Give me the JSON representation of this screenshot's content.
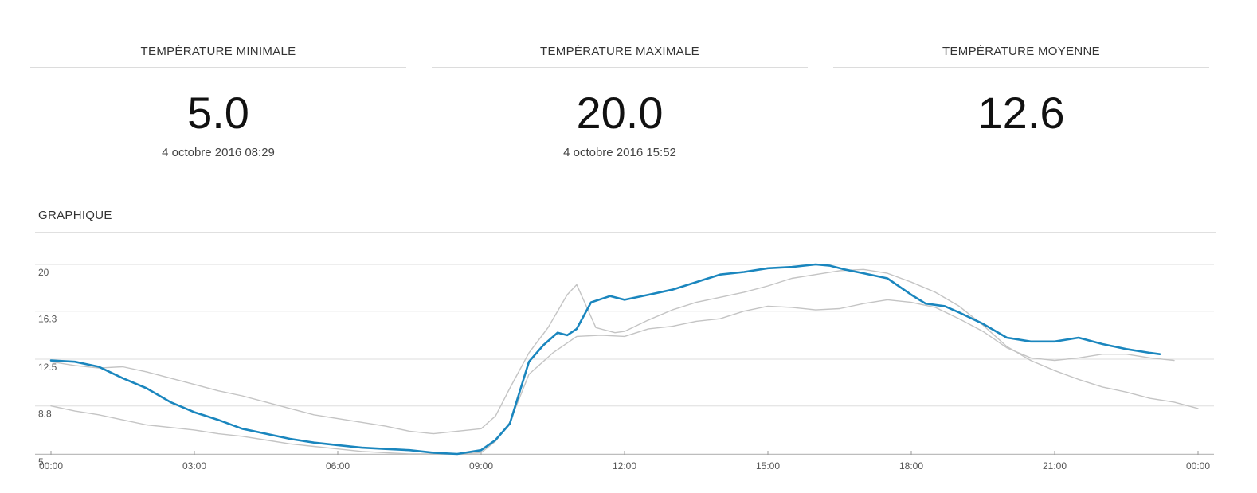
{
  "stats": {
    "min": {
      "title": "TEMPÉRATURE MINIMALE",
      "value": "5.0",
      "date": "4 octobre 2016 08:29"
    },
    "max": {
      "title": "TEMPÉRATURE MAXIMALE",
      "value": "20.0",
      "date": "4 octobre 2016 15:52"
    },
    "avg": {
      "title": "TEMPÉRATURE MOYENNE",
      "value": "12.6"
    }
  },
  "graph": {
    "title": "GRAPHIQUE"
  },
  "chart_data": {
    "type": "line",
    "ylim": [
      5,
      20
    ],
    "yticks": [
      "5",
      "8.8",
      "12.5",
      "16.3",
      "20"
    ],
    "yticks_values": [
      5,
      8.8,
      12.5,
      16.3,
      20
    ],
    "xlim": [
      0,
      24
    ],
    "xticks": [
      "00:00",
      "03:00",
      "06:00",
      "09:00",
      "12:00",
      "15:00",
      "18:00",
      "21:00",
      "00:00"
    ],
    "xticks_values": [
      0,
      3,
      6,
      9,
      12,
      15,
      18,
      21,
      24
    ],
    "grid": true,
    "colors": {
      "main": "#1a86be",
      "ref": "#c4c4c4",
      "grid": "#dedede"
    },
    "series": [
      {
        "x": [
          0,
          0.5,
          1,
          1.5,
          2,
          2.5,
          3,
          3.5,
          4,
          4.5,
          5,
          5.5,
          6,
          6.5,
          7,
          7.5,
          8,
          8.5,
          9,
          9.3,
          9.6,
          10,
          10.3,
          10.6,
          10.8,
          11,
          11.3,
          11.7,
          12,
          12.5,
          13,
          13.5,
          14,
          14.5,
          15,
          15.5,
          16,
          16.3,
          16.6,
          17,
          17.5,
          18,
          18.3,
          18.7,
          19,
          19.5,
          20,
          20.5,
          21,
          21.5,
          22,
          22.5,
          23,
          23.2
        ],
        "y": [
          12.4,
          12.3,
          11.9,
          11.0,
          10.2,
          9.1,
          8.3,
          7.7,
          7.0,
          6.6,
          6.2,
          5.9,
          5.7,
          5.5,
          5.4,
          5.3,
          5.1,
          5.0,
          5.3,
          6.1,
          7.4,
          12.3,
          13.6,
          14.6,
          14.4,
          14.9,
          17.0,
          17.5,
          17.2,
          17.6,
          18.0,
          18.6,
          19.2,
          19.4,
          19.7,
          19.8,
          20.0,
          19.9,
          19.6,
          19.3,
          18.9,
          17.6,
          16.9,
          16.7,
          16.2,
          15.3,
          14.2,
          13.9,
          13.9,
          14.2,
          13.7,
          13.3,
          13.0,
          12.9
        ]
      },
      {
        "x": [
          0,
          0.5,
          1,
          1.5,
          2,
          2.5,
          3,
          3.5,
          4,
          4.5,
          5,
          5.5,
          6,
          6.5,
          7,
          7.5,
          8,
          8.5,
          9,
          9.3,
          9.6,
          10,
          10.4,
          10.8,
          11.0,
          11.4,
          11.8,
          12,
          12.5,
          13,
          13.5,
          14,
          14.5,
          15,
          15.5,
          16,
          16.5,
          17,
          17.5,
          18,
          18.5,
          19,
          19.5,
          20,
          20.5,
          21,
          21.5,
          22,
          22.5,
          23,
          23.5,
          24
        ],
        "y": [
          12.3,
          12.0,
          11.8,
          11.9,
          11.5,
          11.0,
          10.5,
          10.0,
          9.6,
          9.1,
          8.6,
          8.1,
          7.8,
          7.5,
          7.2,
          6.8,
          6.6,
          6.8,
          7.0,
          8.0,
          10.2,
          13.0,
          15.0,
          17.6,
          18.4,
          15.0,
          14.6,
          14.7,
          15.6,
          16.4,
          17.0,
          17.4,
          17.8,
          18.3,
          18.9,
          19.2,
          19.5,
          19.6,
          19.3,
          18.6,
          17.8,
          16.7,
          15.2,
          13.5,
          12.4,
          11.6,
          10.9,
          10.3,
          9.9,
          9.4,
          9.1,
          8.6
        ]
      },
      {
        "x": [
          0,
          0.5,
          1,
          1.5,
          2,
          2.5,
          3,
          3.5,
          4,
          4.5,
          5,
          5.5,
          6,
          6.5,
          7,
          7.5,
          8,
          8.5,
          9,
          9.3,
          9.6,
          10,
          10.5,
          11,
          11.5,
          12,
          12.5,
          13,
          13.5,
          14,
          14.5,
          15,
          15.5,
          16,
          16.5,
          17,
          17.5,
          18,
          18.5,
          19,
          19.5,
          20,
          20.5,
          21,
          21.5,
          22,
          22.5,
          23,
          23.5
        ],
        "y": [
          8.8,
          8.4,
          8.1,
          7.7,
          7.3,
          7.1,
          6.9,
          6.6,
          6.4,
          6.1,
          5.8,
          5.6,
          5.4,
          5.2,
          5.1,
          5.0,
          5.0,
          5.0,
          5.1,
          6.0,
          7.5,
          11.3,
          13.0,
          14.3,
          14.4,
          14.3,
          14.9,
          15.1,
          15.5,
          15.7,
          16.3,
          16.7,
          16.6,
          16.4,
          16.5,
          16.9,
          17.2,
          17.0,
          16.6,
          15.7,
          14.7,
          13.4,
          12.6,
          12.4,
          12.6,
          12.9,
          12.9,
          12.6,
          12.4
        ]
      }
    ]
  }
}
